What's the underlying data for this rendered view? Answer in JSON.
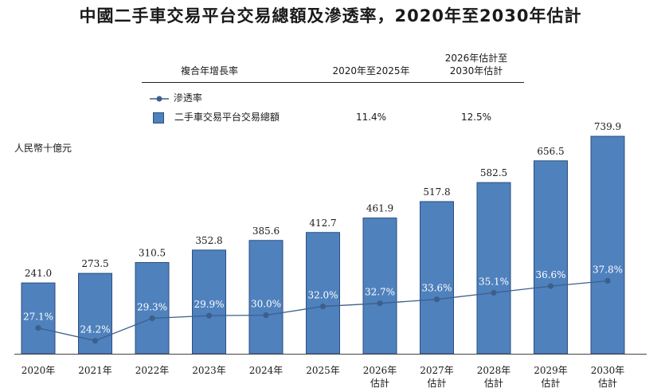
{
  "title": "中國二手車交易平台交易總額及滲透率，2020年至2030年估計",
  "cagr_table": {
    "header_label": "複合年增長率",
    "col1_header": "2020年至2025年",
    "col2_header_line1": "2026年估計至",
    "col2_header_line2": "2030年估計",
    "col1_value": "11.4%",
    "col2_value": "12.5%"
  },
  "legend": {
    "line_label": "滲透率",
    "bar_label": "二手車交易平台交易總額"
  },
  "colors": {
    "bar": "#4f81bd",
    "bar_edge": "#2a4f80",
    "line": "#3d5f8c"
  },
  "chart_data": {
    "type": "bar",
    "ylabel": "人民幣十億元",
    "categories": [
      "2020年",
      "2021年",
      "2022年",
      "2023年",
      "2024年",
      "2025年",
      "2026年\n估計",
      "2027年\n估計",
      "2028年\n估計",
      "2029年\n估計",
      "2030年\n估計"
    ],
    "series": [
      {
        "name": "二手車交易平台交易總額",
        "type": "bar",
        "values": [
          241.0,
          273.5,
          310.5,
          352.8,
          385.6,
          412.7,
          461.9,
          517.8,
          582.5,
          656.5,
          739.9
        ],
        "labels": [
          "241.0",
          "273.5",
          "310.5",
          "352.8",
          "385.6",
          "412.7",
          "461.9",
          "517.8",
          "582.5",
          "656.5",
          "739.9"
        ]
      },
      {
        "name": "滲透率",
        "type": "line",
        "values": [
          27.1,
          24.2,
          29.3,
          29.9,
          30.0,
          32.0,
          32.7,
          33.6,
          35.1,
          36.6,
          37.8
        ],
        "labels": [
          "27.1%",
          "24.2%",
          "29.3%",
          "29.9%",
          "30.0%",
          "32.0%",
          "32.7%",
          "33.6%",
          "35.1%",
          "36.6%",
          "37.8%"
        ]
      }
    ]
  }
}
